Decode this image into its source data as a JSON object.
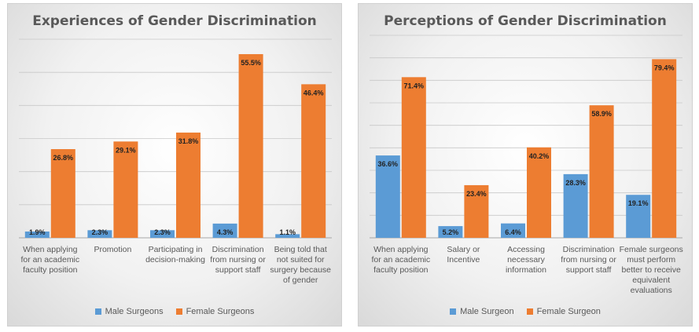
{
  "colors": {
    "male": "#5b9bd5",
    "female": "#ed7d31",
    "grid": "#c8c8c8",
    "axis": "#a6a6a6",
    "text": "#595959"
  },
  "chart_data": [
    {
      "type": "bar",
      "title": "Experiences of Gender Discrimination",
      "categories": [
        [
          "When applying",
          "for an academic",
          "faculty position"
        ],
        [
          "Promotion"
        ],
        [
          "Participating in",
          "decision-making"
        ],
        [
          "Discrimination",
          "from nursing or",
          "support staff"
        ],
        [
          "Being told that",
          "not suited for",
          "surgery because",
          "of gender"
        ]
      ],
      "series": [
        {
          "name": "Male Surgeons",
          "values": [
            1.9,
            2.3,
            2.3,
            4.3,
            1.1
          ],
          "labels": [
            "1.9%",
            "2.3%",
            "2.3%",
            "4.3%",
            "1.1%"
          ]
        },
        {
          "name": "Female Surgeons",
          "values": [
            26.8,
            29.1,
            31.8,
            55.5,
            46.4
          ],
          "labels": [
            "26.8%",
            "29.1%",
            "31.8%",
            "55.5%",
            "46.4%"
          ]
        }
      ],
      "ylim": [
        0,
        60
      ],
      "grid_step": 10,
      "legend": "bottom"
    },
    {
      "type": "bar",
      "title": "Perceptions of Gender Discrimination",
      "categories": [
        [
          "When applying",
          "for an academic",
          "faculty position"
        ],
        [
          "Salary or",
          "Incentive"
        ],
        [
          "Accessing",
          "necessary",
          "information"
        ],
        [
          "Discrimination",
          "from nursing or",
          "support staff"
        ],
        [
          "Female surgeons",
          "must perform",
          "better to receive",
          "equivalent",
          "evaluations"
        ]
      ],
      "series": [
        {
          "name": "Male Surgeon",
          "values": [
            36.6,
            5.2,
            6.4,
            28.3,
            19.1
          ],
          "labels": [
            "36.6%",
            "5.2%",
            "6.4%",
            "28.3%",
            "19.1%"
          ]
        },
        {
          "name": "Female Surgeon",
          "values": [
            71.4,
            23.4,
            40.2,
            58.9,
            79.4
          ],
          "labels": [
            "71.4%",
            "23.4%",
            "40.2%",
            "58.9%",
            "79.4%"
          ]
        }
      ],
      "ylim": [
        0,
        90
      ],
      "grid_step": 10,
      "legend": "bottom"
    }
  ]
}
